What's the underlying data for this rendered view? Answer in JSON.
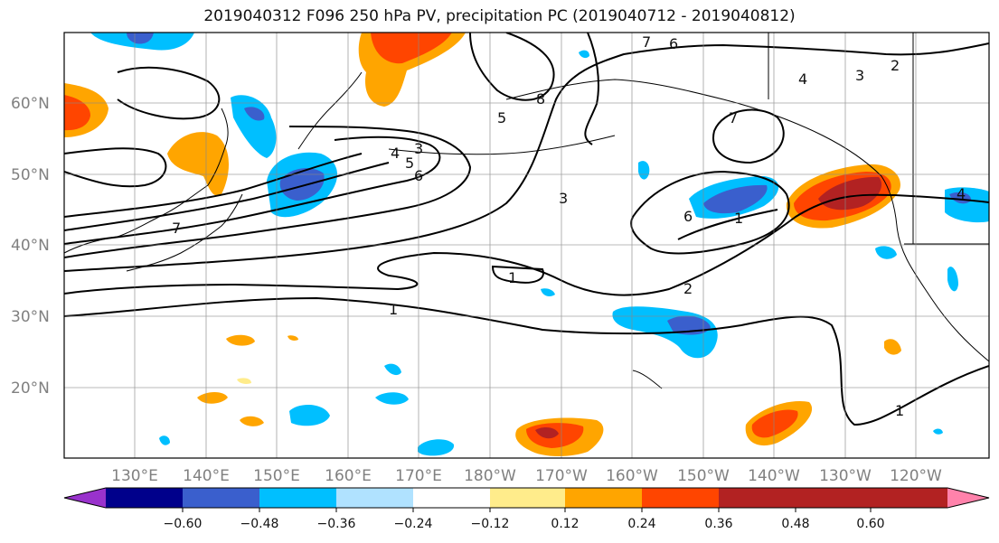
{
  "title": "2019040312 F096 250 hPa PV, precipitation PC (2019040712 - 2019040812)",
  "lat_labels": [
    "60°N",
    "50°N",
    "40°N",
    "30°N",
    "20°N"
  ],
  "lon_labels": [
    "130°E",
    "140°E",
    "150°E",
    "160°E",
    "170°E",
    "180°W",
    "170°W",
    "160°W",
    "150°W",
    "140°W",
    "130°W",
    "120°W"
  ],
  "colorbar": {
    "tick_labels": [
      "−0.60",
      "−0.48",
      "−0.36",
      "−0.24",
      "−0.12",
      "0.12",
      "0.24",
      "0.36",
      "0.48",
      "0.60"
    ],
    "colors": [
      "#9932CC",
      "#00008B",
      "#3A5FCD",
      "#00BFFF",
      "#B0E2FF",
      "#FFFFFF",
      "#FFEC8B",
      "#FFA500",
      "#FF4500",
      "#B22222",
      "#FF82AB"
    ]
  },
  "contour_labels": [
    "1",
    "1",
    "1",
    "1",
    "2",
    "3",
    "3",
    "4",
    "4",
    "5",
    "5",
    "6",
    "6",
    "6",
    "7",
    "7",
    "7",
    "8",
    "3",
    "2",
    "4"
  ]
}
